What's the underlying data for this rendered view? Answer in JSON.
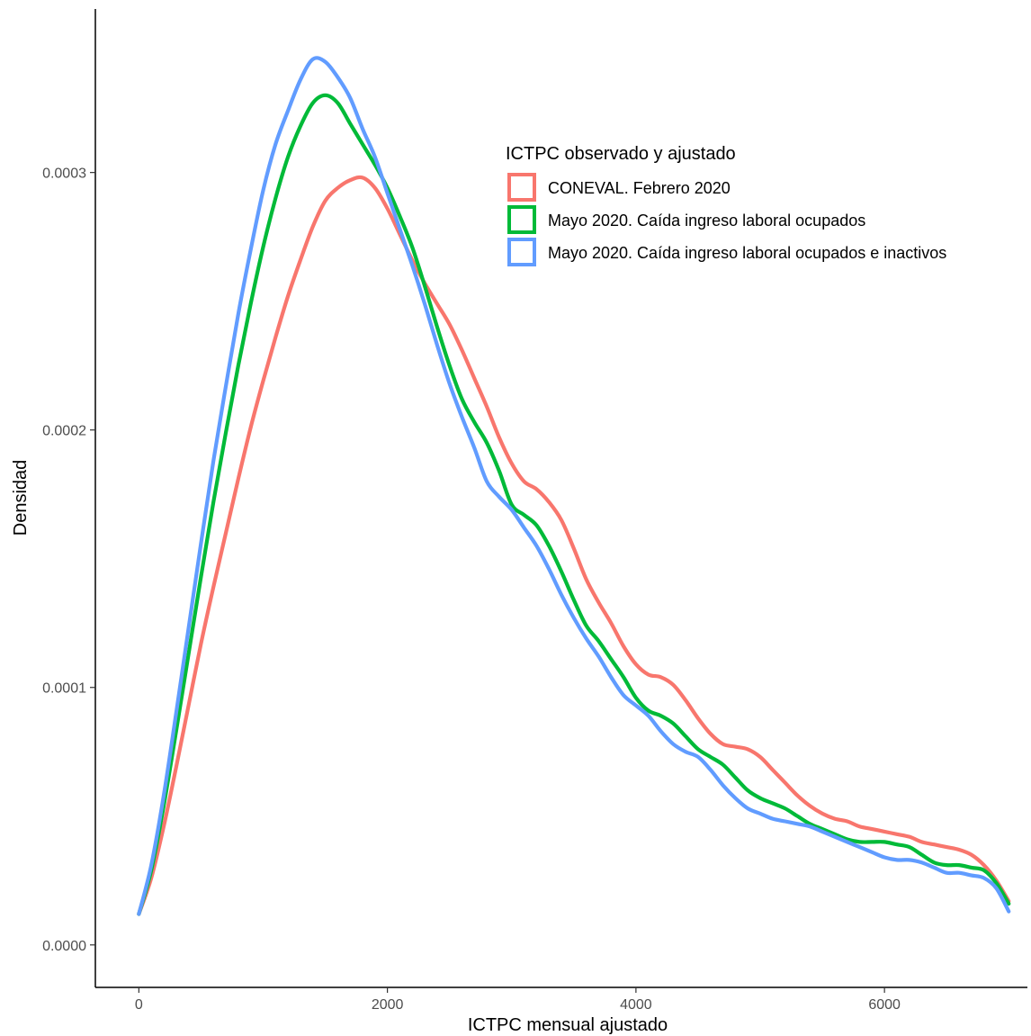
{
  "chart_data": {
    "type": "line",
    "xlabel": "ICTPC mensual ajustado",
    "ylabel": "Densidad",
    "xlim": [
      -350,
      7150
    ],
    "ylim": [
      -1.65e-05,
      0.0003635
    ],
    "x_ticks": [
      0,
      2000,
      4000,
      6000
    ],
    "x_tick_labels": [
      "0",
      "2000",
      "4000",
      "6000"
    ],
    "y_ticks": [
      0,
      0.0001,
      0.0002,
      0.0003
    ],
    "y_tick_labels": [
      "0.0000",
      "0.0001",
      "0.0002",
      "0.0003"
    ],
    "grid": false,
    "legend": {
      "title": "ICTPC observado y ajustado",
      "position": "top-right inside plot"
    },
    "series": [
      {
        "name": "CONEVAL. Febrero 2020",
        "color": "#F8766D",
        "x": [
          0,
          100,
          200,
          300,
          400,
          500,
          600,
          700,
          800,
          900,
          1000,
          1100,
          1200,
          1300,
          1400,
          1500,
          1600,
          1700,
          1800,
          1900,
          2000,
          2100,
          2200,
          2300,
          2400,
          2500,
          2600,
          2700,
          2800,
          2900,
          3000,
          3100,
          3200,
          3300,
          3400,
          3500,
          3600,
          3700,
          3800,
          3900,
          4000,
          4100,
          4200,
          4300,
          4400,
          4500,
          4600,
          4700,
          4800,
          4900,
          5000,
          5100,
          5200,
          5300,
          5400,
          5500,
          5600,
          5700,
          5800,
          5900,
          6000,
          6100,
          6200,
          6300,
          6400,
          6500,
          6600,
          6700,
          6800,
          6900,
          7000
        ],
        "y": [
          1.2e-05,
          2.6e-05,
          4.6e-05,
          6.9e-05,
          9.3e-05,
          0.000117,
          0.000139,
          0.00016,
          0.000181,
          0.000201,
          0.000219,
          0.000236,
          0.000252,
          0.000266,
          0.000279,
          0.000289,
          0.000294,
          0.000297,
          0.000298,
          0.000294,
          0.000286,
          0.000276,
          0.000266,
          0.000257,
          0.000249,
          0.000241,
          0.000231,
          0.00022,
          0.000209,
          0.000197,
          0.000187,
          0.00018,
          0.000177,
          0.000172,
          0.000165,
          0.000154,
          0.000142,
          0.000133,
          0.000125,
          0.000116,
          0.000109,
          0.000105,
          0.000104,
          0.000101,
          9.5e-05,
          8.8e-05,
          8.2e-05,
          7.8e-05,
          7.7e-05,
          7.6e-05,
          7.3e-05,
          6.8e-05,
          6.3e-05,
          5.8e-05,
          5.4e-05,
          5.1e-05,
          4.9e-05,
          4.8e-05,
          4.6e-05,
          4.5e-05,
          4.4e-05,
          4.3e-05,
          4.2e-05,
          4e-05,
          3.9e-05,
          3.8e-05,
          3.7e-05,
          3.5e-05,
          3.1e-05,
          2.5e-05,
          1.7e-05
        ]
      },
      {
        "name": "Mayo 2020. Caída ingreso laboral ocupados",
        "color": "#00BA38",
        "x": [
          0,
          100,
          200,
          300,
          400,
          500,
          600,
          700,
          800,
          900,
          1000,
          1100,
          1200,
          1300,
          1400,
          1500,
          1600,
          1700,
          1800,
          1900,
          2000,
          2100,
          2200,
          2300,
          2400,
          2500,
          2600,
          2700,
          2800,
          2900,
          3000,
          3100,
          3200,
          3300,
          3400,
          3500,
          3600,
          3700,
          3800,
          3900,
          4000,
          4100,
          4200,
          4300,
          4400,
          4500,
          4600,
          4700,
          4800,
          4900,
          5000,
          5100,
          5200,
          5300,
          5400,
          5500,
          5600,
          5700,
          5800,
          5900,
          6000,
          6100,
          6200,
          6300,
          6400,
          6500,
          6600,
          6700,
          6800,
          6900,
          7000
        ],
        "y": [
          1.2e-05,
          2.9e-05,
          5.4e-05,
          8.3e-05,
          0.000113,
          0.000143,
          0.000172,
          0.000199,
          0.000225,
          0.000249,
          0.000271,
          0.00029,
          0.000306,
          0.000318,
          0.000327,
          0.00033,
          0.000327,
          0.000319,
          0.000311,
          0.000303,
          0.000294,
          0.000283,
          0.000271,
          0.000256,
          0.00024,
          0.000225,
          0.000212,
          0.000203,
          0.000195,
          0.000184,
          0.000171,
          0.000167,
          0.000163,
          0.000155,
          0.000145,
          0.000134,
          0.000124,
          0.000118,
          0.000111,
          0.000104,
          9.6e-05,
          9.1e-05,
          8.9e-05,
          8.6e-05,
          8.1e-05,
          7.6e-05,
          7.3e-05,
          7e-05,
          6.5e-05,
          6e-05,
          5.7e-05,
          5.5e-05,
          5.3e-05,
          5e-05,
          4.7e-05,
          4.5e-05,
          4.3e-05,
          4.1e-05,
          4e-05,
          4e-05,
          4e-05,
          3.9e-05,
          3.8e-05,
          3.5e-05,
          3.2e-05,
          3.1e-05,
          3.1e-05,
          3e-05,
          2.9e-05,
          2.4e-05,
          1.6e-05
        ]
      },
      {
        "name": "Mayo 2020. Caída ingreso laboral ocupados e inactivos",
        "color": "#619CFF",
        "x": [
          0,
          100,
          200,
          300,
          400,
          500,
          600,
          700,
          800,
          900,
          1000,
          1100,
          1200,
          1300,
          1400,
          1500,
          1600,
          1700,
          1800,
          1900,
          2000,
          2100,
          2200,
          2300,
          2400,
          2500,
          2600,
          2700,
          2800,
          2900,
          3000,
          3100,
          3200,
          3300,
          3400,
          3500,
          3600,
          3700,
          3800,
          3900,
          4000,
          4100,
          4200,
          4300,
          4400,
          4500,
          4600,
          4700,
          4800,
          4900,
          5000,
          5100,
          5200,
          5300,
          5400,
          5500,
          5600,
          5700,
          5800,
          5900,
          6000,
          6100,
          6200,
          6300,
          6400,
          6500,
          6600,
          6700,
          6800,
          6900,
          7000
        ],
        "y": [
          1.2e-05,
          3.1e-05,
          5.8e-05,
          9e-05,
          0.000123,
          0.000156,
          0.000188,
          0.000217,
          0.000245,
          0.00027,
          0.000293,
          0.000311,
          0.000324,
          0.000336,
          0.000344,
          0.000343,
          0.000337,
          0.000329,
          0.000317,
          0.000306,
          0.000292,
          0.000278,
          0.000264,
          0.000249,
          0.000233,
          0.000218,
          0.000205,
          0.000193,
          0.00018,
          0.000174,
          0.000169,
          0.000162,
          0.000155,
          0.000146,
          0.000136,
          0.000127,
          0.000119,
          0.000112,
          0.000104,
          9.7e-05,
          9.3e-05,
          8.9e-05,
          8.3e-05,
          7.8e-05,
          7.5e-05,
          7.3e-05,
          6.8e-05,
          6.2e-05,
          5.7e-05,
          5.3e-05,
          5.1e-05,
          4.9e-05,
          4.8e-05,
          4.7e-05,
          4.6e-05,
          4.4e-05,
          4.2e-05,
          4e-05,
          3.8e-05,
          3.6e-05,
          3.4e-05,
          3.3e-05,
          3.3e-05,
          3.2e-05,
          3e-05,
          2.8e-05,
          2.8e-05,
          2.7e-05,
          2.6e-05,
          2.2e-05,
          1.3e-05
        ]
      }
    ]
  }
}
